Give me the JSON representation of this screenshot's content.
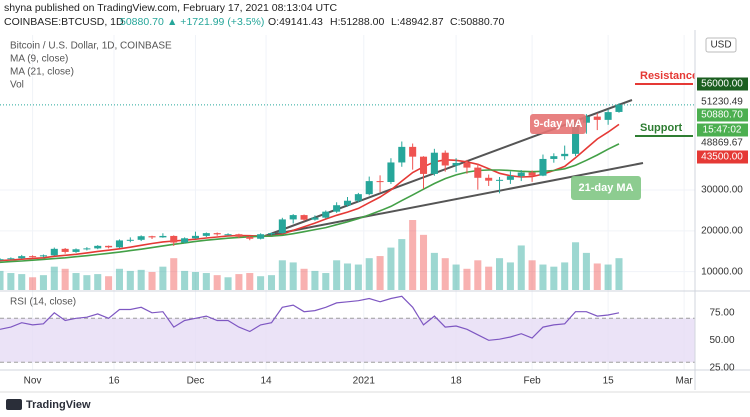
{
  "header": {
    "byline": "shyna published on TradingView.com, February 17, 2021 08:13:04 UTC",
    "symbol": "COINBASE:BTCUSD, 1D",
    "last": "50880.70",
    "change": "▲ +1721.99 (+3.5%)",
    "open": "O:49141.43",
    "high": "H:51288.00",
    "low": "L:48942.87",
    "close": "C:50880.70"
  },
  "footer": {
    "logo": "TradingView"
  },
  "chart_data": {
    "type": "candlestick",
    "title": "Bitcoin / U.S. Dollar, 1D, COINBASE",
    "currency": "USD",
    "up_color": "#26a69a",
    "down_color": "#ef5350",
    "grid": true,
    "x": [
      0,
      2,
      4,
      6,
      8,
      10,
      12,
      14,
      16,
      18,
      20,
      22,
      24,
      26,
      28,
      30,
      32,
      34,
      36,
      38,
      40,
      42,
      44,
      46,
      48,
      50,
      52,
      54,
      56,
      58,
      60,
      62,
      64,
      66,
      68,
      70,
      72,
      74,
      76,
      78,
      80,
      82,
      84,
      86,
      88,
      90,
      92,
      94,
      96,
      98,
      100,
      102,
      104,
      106,
      108,
      110,
      112,
      114
    ],
    "open": [
      12950,
      13050,
      13280,
      13800,
      13740,
      14000,
      15590,
      14830,
      15480,
      15700,
      16320,
      15960,
      17650,
      17800,
      18680,
      18400,
      18750,
      17130,
      18180,
      18770,
      19440,
      19150,
      19170,
      18550,
      18060,
      19170,
      19430,
      22800,
      23860,
      22740,
      23240,
      24700,
      26280,
      27380,
      28990,
      32190,
      31970,
      36760,
      40580,
      38180,
      33950,
      39150,
      36020,
      36630,
      35500,
      33000,
      32290,
      32500,
      33400,
      34300,
      33530,
      37620,
      38300,
      38870,
      46500,
      48000,
      47200,
      49141.43
    ],
    "high": [
      13300,
      13500,
      14100,
      14000,
      14200,
      15900,
      15800,
      15700,
      16000,
      16500,
      16400,
      17900,
      18400,
      18900,
      18800,
      19400,
      18900,
      18400,
      19800,
      19600,
      19600,
      19400,
      19300,
      18700,
      19400,
      19600,
      23200,
      24100,
      24000,
      23800,
      25000,
      27000,
      28300,
      29300,
      33300,
      33600,
      37800,
      41900,
      41400,
      38300,
      40100,
      39700,
      37800,
      37400,
      36500,
      33800,
      33200,
      34600,
      34900,
      34800,
      38700,
      39000,
      40900,
      46900,
      48600,
      48800,
      49700,
      51288
    ],
    "low": [
      12800,
      12950,
      13100,
      13500,
      13500,
      13900,
      14400,
      14600,
      15200,
      15500,
      15700,
      15800,
      17200,
      17500,
      18000,
      18300,
      16300,
      16900,
      18000,
      18500,
      18800,
      18900,
      18200,
      17700,
      17900,
      18900,
      19300,
      21800,
      22400,
      22500,
      23000,
      24400,
      25900,
      27000,
      28700,
      29500,
      31500,
      35700,
      35000,
      30300,
      33500,
      34500,
      34400,
      34000,
      30100,
      31000,
      29200,
      31500,
      32200,
      32000,
      33400,
      36700,
      37400,
      38300,
      43800,
      44700,
      46000,
      48942.87
    ],
    "close": [
      13050,
      13280,
      13800,
      13740,
      14000,
      15590,
      14830,
      15480,
      15700,
      16320,
      15960,
      17650,
      17800,
      18680,
      18400,
      18750,
      17130,
      18180,
      18770,
      19440,
      19150,
      19170,
      18550,
      18060,
      19170,
      19430,
      22800,
      23860,
      22740,
      23240,
      24700,
      26280,
      27380,
      28990,
      32190,
      31970,
      36760,
      40580,
      38180,
      33950,
      39150,
      36020,
      36630,
      35500,
      33000,
      32290,
      32500,
      33400,
      34300,
      33530,
      37620,
      38300,
      38870,
      46500,
      48000,
      47200,
      49100,
      50880.7
    ],
    "ma": [
      {
        "name": "MA (9, close)",
        "color": "#e53935",
        "values": [
          12700,
          12850,
          13050,
          13250,
          13400,
          13750,
          14000,
          14250,
          14600,
          14950,
          15250,
          15600,
          16000,
          16450,
          16900,
          17300,
          17500,
          17700,
          17950,
          18250,
          18500,
          18750,
          18850,
          18800,
          18700,
          18700,
          19200,
          20100,
          21000,
          21900,
          22900,
          23800,
          24600,
          25500,
          26900,
          28300,
          30000,
          32200,
          34300,
          35700,
          36900,
          37400,
          37300,
          36900,
          36300,
          35200,
          34100,
          33500,
          33200,
          33300,
          33900,
          34800,
          35800,
          37900,
          40200,
          42500,
          44200,
          46100
        ]
      },
      {
        "name": "MA (21, close)",
        "color": "#43a047",
        "values": [
          12300,
          12450,
          12600,
          12800,
          13000,
          13200,
          13400,
          13650,
          13900,
          14200,
          14500,
          14800,
          15150,
          15500,
          15900,
          16300,
          16700,
          17050,
          17400,
          17700,
          17950,
          18200,
          18400,
          18550,
          18650,
          18700,
          18900,
          19300,
          19800,
          20300,
          20800,
          21500,
          22200,
          23000,
          23900,
          24900,
          26000,
          27400,
          28800,
          30200,
          31600,
          32800,
          33700,
          34400,
          34800,
          34900,
          34900,
          34800,
          34600,
          34500,
          34600,
          34800,
          35200,
          36100,
          37300,
          38600,
          40000,
          41300
        ]
      }
    ],
    "volume": {
      "name": "Vol",
      "values": [
        18000,
        16000,
        15000,
        12000,
        14000,
        22000,
        20000,
        16000,
        14000,
        15000,
        13000,
        20000,
        18000,
        19000,
        17000,
        22000,
        30000,
        18000,
        17000,
        16000,
        14000,
        12000,
        15000,
        16000,
        13000,
        14000,
        28000,
        26000,
        20000,
        18000,
        16000,
        28000,
        25000,
        24000,
        30000,
        32000,
        40000,
        48000,
        66000,
        52000,
        35000,
        30000,
        24000,
        20000,
        28000,
        22000,
        30000,
        26000,
        42000,
        28000,
        24000,
        22000,
        26000,
        45000,
        35000,
        25000,
        24000,
        30000
      ]
    },
    "rsi": {
      "name": "RSI (14, close)",
      "color": "#7e57c2",
      "band": [
        30,
        70
      ],
      "band_color": "#e6dcf5",
      "values": [
        60,
        62,
        66,
        64,
        65,
        75,
        68,
        70,
        71,
        74,
        70,
        78,
        78,
        80,
        75,
        76,
        62,
        68,
        70,
        72,
        68,
        68,
        62,
        58,
        64,
        66,
        80,
        82,
        76,
        77,
        80,
        84,
        85,
        86,
        88,
        85,
        88,
        90,
        80,
        64,
        72,
        62,
        63,
        60,
        55,
        50,
        51,
        53,
        56,
        52,
        62,
        64,
        65,
        76,
        76,
        72,
        73,
        75
      ],
      "ylim": [
        23,
        93
      ],
      "yticks": [
        {
          "value": 75,
          "label": "75.00"
        },
        {
          "value": 50,
          "label": "50.00"
        },
        {
          "value": 25,
          "label": "25.00"
        }
      ]
    },
    "xlim": [
      0,
      128
    ],
    "xticks": [
      {
        "value": 6,
        "label": "Nov"
      },
      {
        "value": 21,
        "label": "16"
      },
      {
        "value": 36,
        "label": "Dec"
      },
      {
        "value": 49,
        "label": "14"
      },
      {
        "value": 67,
        "label": "2021"
      },
      {
        "value": 84,
        "label": "18"
      },
      {
        "value": 98,
        "label": "Feb"
      },
      {
        "value": 112,
        "label": "15"
      },
      {
        "value": 126,
        "label": "Mar"
      }
    ],
    "ylim": [
      5500,
      68000
    ],
    "yticks": [
      {
        "value": 30000,
        "label": "30000.00"
      },
      {
        "value": 20000,
        "label": "20000.00"
      },
      {
        "value": 10000,
        "label": "10000.00"
      }
    ],
    "axis_badges": [
      {
        "label": "56000.00",
        "color": "#1b5e20"
      },
      {
        "label": "51230.49"
      },
      {
        "label": "50880.70",
        "color": "#4caf50"
      },
      {
        "label": "15:47:02",
        "color": "#4caf50"
      },
      {
        "label": "48869.67"
      },
      {
        "label": "43500.00",
        "color": "#e53935"
      }
    ],
    "annotations": [
      {
        "text": "Resistance",
        "color": "#e53935"
      },
      {
        "text": "Support",
        "color": "#2e7d32"
      },
      {
        "text": "9-day MA",
        "color": "#e57373"
      },
      {
        "text": "21-day MA",
        "color": "#81c784"
      }
    ]
  }
}
